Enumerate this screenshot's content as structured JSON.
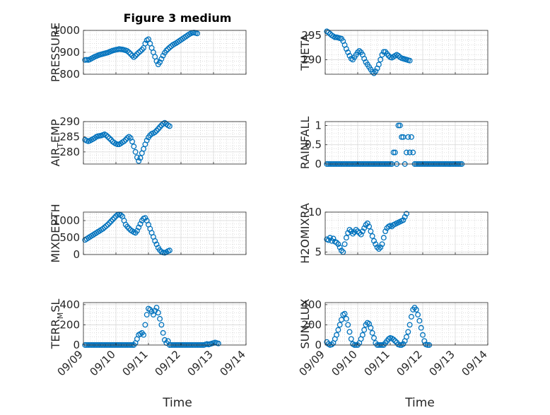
{
  "figure": {
    "title": "Figure 3 medium",
    "xlabel": "Time",
    "marker_color": "#0072bd"
  },
  "chart_data": [
    {
      "type": "scatter",
      "id": "pressure",
      "ylabel": "PRESSURE",
      "ylim": [
        800,
        1000
      ],
      "yticks": [
        "800",
        "900",
        "1000"
      ],
      "ytick_values": [
        800,
        900,
        1000
      ],
      "xlim": [
        0,
        5
      ],
      "x_start": 0.05,
      "x_step": 0.05,
      "grid": true,
      "values": [
        865,
        866,
        865,
        868,
        872,
        876,
        880,
        883,
        886,
        889,
        891,
        893,
        895,
        897,
        899,
        902,
        905,
        908,
        910,
        912,
        913,
        915,
        914,
        913,
        911,
        909,
        906,
        900,
        893,
        885,
        878,
        884,
        892,
        899,
        905,
        912,
        920,
        940,
        955,
        960,
        940,
        920,
        900,
        880,
        860,
        845,
        855,
        870,
        885,
        898,
        908,
        915,
        922,
        928,
        934,
        938,
        942,
        947,
        952,
        957,
        962,
        967,
        972,
        977,
        982,
        986,
        989,
        990,
        988,
        986
      ]
    },
    {
      "type": "scatter",
      "id": "theta",
      "ylabel": "THETA",
      "ylim": [
        287,
        296
      ],
      "yticks": [
        "290",
        "295"
      ],
      "ytick_values": [
        290,
        295
      ],
      "xlim": [
        0,
        5
      ],
      "x_start": 0.05,
      "x_step": 0.05,
      "grid": true,
      "values": [
        295.8,
        295.6,
        295.3,
        295.0,
        294.8,
        294.6,
        294.6,
        294.5,
        294.4,
        294.3,
        293.8,
        293.0,
        292.2,
        291.5,
        290.8,
        290.2,
        290.0,
        290.5,
        291.0,
        291.5,
        291.8,
        291.5,
        291.0,
        290.2,
        289.5,
        289.0,
        288.5,
        288.0,
        287.5,
        287.2,
        287.6,
        288.2,
        289.0,
        290.0,
        291.0,
        291.6,
        291.6,
        291.2,
        290.8,
        290.5,
        290.4,
        290.6,
        290.8,
        291.0,
        290.8,
        290.5,
        290.3,
        290.2,
        290.1,
        290.0,
        289.9,
        289.8
      ]
    },
    {
      "type": "scatter",
      "id": "air-temp",
      "ylabel": "AIR_TEMP",
      "ylim": [
        276,
        290
      ],
      "yticks": [
        "280",
        "285",
        "290"
      ],
      "ytick_values": [
        280,
        285,
        290
      ],
      "xlim": [
        0,
        5
      ],
      "x_start": 0.05,
      "x_step": 0.05,
      "grid": true,
      "values": [
        284.0,
        283.7,
        283.5,
        283.7,
        284.0,
        284.3,
        284.6,
        285.0,
        285.2,
        285.3,
        285.4,
        285.6,
        285.8,
        285.5,
        285.0,
        284.5,
        284.0,
        283.4,
        283.0,
        282.7,
        282.5,
        282.5,
        282.8,
        283.2,
        283.5,
        284.0,
        284.6,
        285.0,
        284.6,
        283.4,
        281.8,
        280.0,
        278.2,
        277.0,
        278.0,
        279.6,
        281.0,
        282.5,
        283.8,
        284.8,
        285.5,
        286.0,
        286.2,
        286.5,
        287.0,
        287.6,
        288.2,
        288.8,
        289.3,
        289.6,
        289.2,
        288.8,
        288.5
      ]
    },
    {
      "type": "scatter",
      "id": "rainfall",
      "ylabel": "RAINFALL",
      "ylim": [
        0,
        1.1
      ],
      "yticks": [
        "0",
        "0.5",
        "1"
      ],
      "ytick_values": [
        0,
        0.5,
        1
      ],
      "xlim": [
        0,
        5
      ],
      "x_start": 0.05,
      "x_step": 0.05,
      "grid": true,
      "values": [
        0,
        0,
        0,
        0,
        0,
        0,
        0,
        0,
        0,
        0,
        0,
        0,
        0,
        0,
        0,
        0,
        0,
        0,
        0,
        0,
        0,
        0,
        0,
        0,
        0,
        0,
        0,
        0,
        0,
        0,
        0,
        0,
        0,
        0,
        0,
        0,
        0,
        0,
        0,
        0,
        0,
        0.3,
        0.3,
        0,
        1,
        1,
        0.7,
        0.7,
        0,
        0.3,
        0.7,
        0.3,
        0.7,
        0.3,
        0,
        0,
        0,
        0,
        0,
        0,
        0,
        0,
        0,
        0,
        0,
        0,
        0,
        0,
        0,
        0,
        0,
        0,
        0,
        0,
        0,
        0,
        0,
        0,
        0,
        0,
        0,
        0,
        0,
        0
      ]
    },
    {
      "type": "scatter",
      "id": "mixdepth",
      "ylabel": "MIXDEPTH",
      "ylim": [
        0,
        1250
      ],
      "yticks": [
        "0",
        "500",
        "1000"
      ],
      "ytick_values": [
        0,
        500,
        1000
      ],
      "xlim": [
        0,
        5
      ],
      "x_start": 0.05,
      "x_step": 0.05,
      "grid": true,
      "values": [
        430,
        460,
        490,
        520,
        550,
        580,
        610,
        640,
        670,
        700,
        730,
        760,
        800,
        840,
        880,
        930,
        980,
        1030,
        1080,
        1130,
        1170,
        1180,
        1160,
        1120,
        1000,
        880,
        820,
        770,
        720,
        690,
        660,
        640,
        700,
        800,
        900,
        1000,
        1060,
        1080,
        1000,
        880,
        760,
        640,
        520,
        400,
        300,
        200,
        130,
        80,
        60,
        50,
        70,
        100,
        120
      ]
    },
    {
      "type": "scatter",
      "id": "h2omixra",
      "ylabel": "H2OMIXRA",
      "ylim": [
        4.7,
        10
      ],
      "yticks": [
        "5",
        "10"
      ],
      "ytick_values": [
        5,
        10
      ],
      "xlim": [
        0,
        5
      ],
      "x_start": 0.05,
      "x_step": 0.05,
      "grid": true,
      "values": [
        6.6,
        6.5,
        6.8,
        6.4,
        6.7,
        6.3,
        6.2,
        6.0,
        5.6,
        5.2,
        5.0,
        6.0,
        6.8,
        7.4,
        7.8,
        7.6,
        7.3,
        7.5,
        7.8,
        7.6,
        7.4,
        7.2,
        7.6,
        8.0,
        8.4,
        8.6,
        8.2,
        7.6,
        7.0,
        6.4,
        6.0,
        5.6,
        5.4,
        5.6,
        6.0,
        6.8,
        7.6,
        8.0,
        8.2,
        8.3,
        8.2,
        8.4,
        8.5,
        8.6,
        8.7,
        8.8,
        8.9,
        9.0,
        9.4,
        9.8
      ]
    },
    {
      "type": "scatter",
      "id": "terr-msl",
      "ylabel": "TERR_MSL",
      "ylim": [
        0,
        420
      ],
      "yticks": [
        "0",
        "200",
        "400"
      ],
      "ytick_values": [
        0,
        200,
        400
      ],
      "xlim": [
        0,
        5
      ],
      "x_start": 0.05,
      "x_step": 0.05,
      "grid": true,
      "values": [
        0,
        0,
        0,
        0,
        0,
        0,
        0,
        0,
        0,
        0,
        0,
        0,
        0,
        0,
        0,
        0,
        0,
        0,
        0,
        0,
        0,
        0,
        0,
        0,
        0,
        0,
        0,
        0,
        0,
        0,
        0,
        20,
        60,
        100,
        110,
        120,
        100,
        200,
        300,
        360,
        350,
        330,
        300,
        340,
        370,
        320,
        260,
        200,
        120,
        50,
        20,
        40,
        0,
        0,
        0,
        0,
        0,
        0,
        0,
        0,
        0,
        0,
        0,
        0,
        0,
        0,
        0,
        0,
        0,
        0,
        0,
        0,
        0,
        0,
        5,
        10,
        5,
        10,
        15,
        20,
        25,
        20,
        15
      ]
    },
    {
      "type": "scatter",
      "id": "sun-flux",
      "ylabel": "SUN_FLUX",
      "ylim": [
        0,
        420
      ],
      "yticks": [
        "0",
        "200",
        "400"
      ],
      "ytick_values": [
        0,
        200,
        400
      ],
      "xlim": [
        0,
        5
      ],
      "x_start": 0.05,
      "x_step": 0.05,
      "grid": true,
      "values": [
        30,
        10,
        0,
        5,
        20,
        60,
        100,
        150,
        200,
        250,
        300,
        310,
        260,
        200,
        130,
        60,
        10,
        0,
        0,
        0,
        20,
        60,
        100,
        150,
        200,
        220,
        210,
        170,
        120,
        70,
        20,
        0,
        0,
        0,
        0,
        0,
        20,
        40,
        60,
        70,
        65,
        55,
        40,
        25,
        5,
        0,
        0,
        10,
        40,
        80,
        130,
        200,
        280,
        350,
        370,
        350,
        300,
        240,
        170,
        100,
        40,
        5,
        0,
        0
      ]
    }
  ],
  "xticks": [
    "09/09",
    "09/10",
    "09/11",
    "09/12",
    "09/13",
    "09/14"
  ]
}
